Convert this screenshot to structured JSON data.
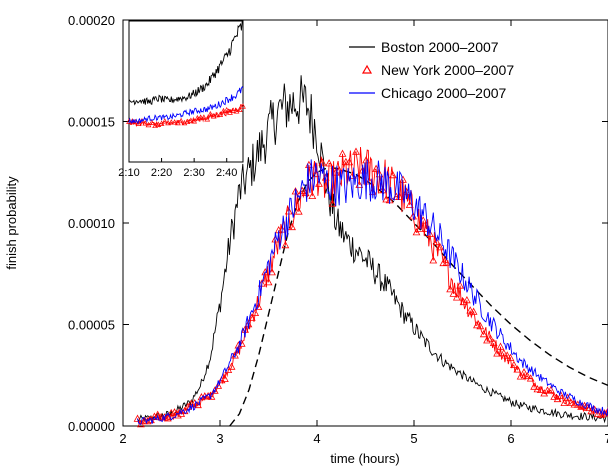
{
  "chart_data": {
    "type": "line",
    "xlabel": "time (hours)",
    "ylabel": "finish probability",
    "xlim": [
      2,
      7
    ],
    "ylim": [
      0,
      0.0002
    ],
    "x_ticks": [
      "2",
      "3",
      "4",
      "5",
      "6",
      "7"
    ],
    "y_ticks": [
      "0.00000",
      "0.00005",
      "0.00010",
      "0.00015",
      "0.00020"
    ],
    "legend_position": "top-right",
    "series": [
      {
        "name": "Boston 2000–2007",
        "color": "#000000",
        "style": "line",
        "x": [
          2.15,
          2.3,
          2.5,
          2.7,
          2.8,
          2.9,
          3.0,
          3.1,
          3.2,
          3.3,
          3.4,
          3.5,
          3.6,
          3.7,
          3.8,
          3.9,
          4.0,
          4.1,
          4.2,
          4.3,
          4.5,
          4.7,
          4.9,
          5.1,
          5.3,
          5.5,
          5.7,
          5.9,
          6.1,
          6.3,
          6.5,
          6.7,
          6.9,
          7.0
        ],
        "y": [
          3e-06,
          4e-06,
          6e-06,
          1.2e-05,
          2e-05,
          3.4e-05,
          6e-05,
          9e-05,
          0.000115,
          0.000125,
          0.000135,
          0.000145,
          0.000155,
          0.000158,
          0.00016,
          0.000158,
          0.000145,
          0.000118,
          0.0001,
          9.2e-05,
          8.2e-05,
          7e-05,
          5.5e-05,
          4.2e-05,
          3.2e-05,
          2.5e-05,
          1.9e-05,
          1.4e-05,
          1e-05,
          8e-06,
          6e-06,
          5e-06,
          4e-06,
          4e-06
        ]
      },
      {
        "name": "New York 2000–2007",
        "color": "#ff0000",
        "style": "triangle",
        "x": [
          2.15,
          2.3,
          2.5,
          2.7,
          2.9,
          3.0,
          3.2,
          3.4,
          3.6,
          3.8,
          3.9,
          4.0,
          4.1,
          4.3,
          4.5,
          4.7,
          4.9,
          5.1,
          5.3,
          5.5,
          5.7,
          5.9,
          6.1,
          6.3,
          6.5,
          6.7,
          6.9,
          7.0
        ],
        "y": [
          2e-06,
          3e-06,
          5e-06,
          9e-06,
          1.5e-05,
          2.1e-05,
          3.8e-05,
          6.2e-05,
          9e-05,
          0.00011,
          0.000118,
          0.000125,
          0.000118,
          0.000125,
          0.000127,
          0.000122,
          0.000112,
          9.8e-05,
          8e-05,
          6.3e-05,
          4.8e-05,
          3.6e-05,
          2.6e-05,
          1.9e-05,
          1.4e-05,
          1e-05,
          7e-06,
          6e-06
        ]
      },
      {
        "name": "Chicago 2000–2007",
        "color": "#0000ff",
        "style": "line",
        "x": [
          2.15,
          2.3,
          2.5,
          2.7,
          2.9,
          3.0,
          3.2,
          3.4,
          3.6,
          3.8,
          3.9,
          4.0,
          4.1,
          4.3,
          4.5,
          4.7,
          4.9,
          5.1,
          5.3,
          5.5,
          5.7,
          5.9,
          6.1,
          6.3,
          6.5,
          6.7,
          6.9,
          7.0
        ],
        "y": [
          2e-06,
          3e-06,
          5e-06,
          9e-06,
          1.5e-05,
          2.2e-05,
          4e-05,
          6.5e-05,
          9.3e-05,
          0.000112,
          0.00012,
          0.000124,
          0.00012,
          0.000118,
          0.000122,
          0.00012,
          0.000114,
          0.000104,
          9e-05,
          7.4e-05,
          5.8e-05,
          4.4e-05,
          3.2e-05,
          2.4e-05,
          1.7e-05,
          1.2e-05,
          8e-06,
          7e-06
        ]
      },
      {
        "name": "",
        "color": "#000000",
        "style": "dashed",
        "x": [
          3.1,
          3.2,
          3.3,
          3.4,
          3.5,
          3.6,
          3.7,
          3.8,
          3.9,
          4.0,
          4.1,
          4.2,
          4.4,
          4.6,
          4.8,
          5.0,
          5.2,
          5.4,
          5.6,
          5.8,
          6.0,
          6.2,
          6.4,
          6.6,
          6.8,
          7.0
        ],
        "y": [
          0.0,
          6e-06,
          1.8e-05,
          3.5e-05,
          5.5e-05,
          7.5e-05,
          9.5e-05,
          0.00011,
          0.00012,
          0.000125,
          0.000127,
          0.000127,
          0.000124,
          0.000118,
          0.00011,
          0.0001,
          9e-05,
          7.9e-05,
          6.9e-05,
          5.9e-05,
          5e-05,
          4.2e-05,
          3.5e-05,
          2.9e-05,
          2.4e-05,
          2e-05
        ]
      }
    ],
    "inset": {
      "x_ticks": [
        "2:10",
        "2:20",
        "2:30",
        "2:40"
      ],
      "xlim_minutes": [
        130,
        165
      ],
      "ylim": [
        0,
        2e-05
      ],
      "series": [
        {
          "color": "#000000",
          "x": [
            130,
            133,
            136,
            139,
            142,
            145,
            148,
            151,
            154,
            157,
            160,
            163,
            165
          ],
          "y": [
            8.5e-06,
            8.8e-06,
            8.5e-06,
            9e-06,
            8.7e-06,
            9e-06,
            9.2e-06,
            1e-05,
            1.1e-05,
            1.3e-05,
            1.5e-05,
            1.8e-05,
            1.95e-05
          ]
        },
        {
          "color": "#ff0000",
          "x": [
            130,
            133,
            136,
            139,
            142,
            145,
            148,
            151,
            154,
            157,
            160,
            163,
            165
          ],
          "y": [
            5.5e-06,
            5.5e-06,
            5.5e-06,
            5.3e-06,
            5.5e-06,
            5.6e-06,
            5.8e-06,
            6e-06,
            6.3e-06,
            6.7e-06,
            7e-06,
            7.5e-06,
            8e-06
          ]
        },
        {
          "color": "#0000ff",
          "x": [
            130,
            133,
            136,
            139,
            142,
            145,
            148,
            151,
            154,
            157,
            160,
            163,
            165
          ],
          "y": [
            5.8e-06,
            5.8e-06,
            6.2e-06,
            6.3e-06,
            6.3e-06,
            6.6e-06,
            7e-06,
            7.3e-06,
            7.5e-06,
            8e-06,
            8.8e-06,
            9.5e-06,
            1.05e-05
          ]
        }
      ]
    }
  }
}
